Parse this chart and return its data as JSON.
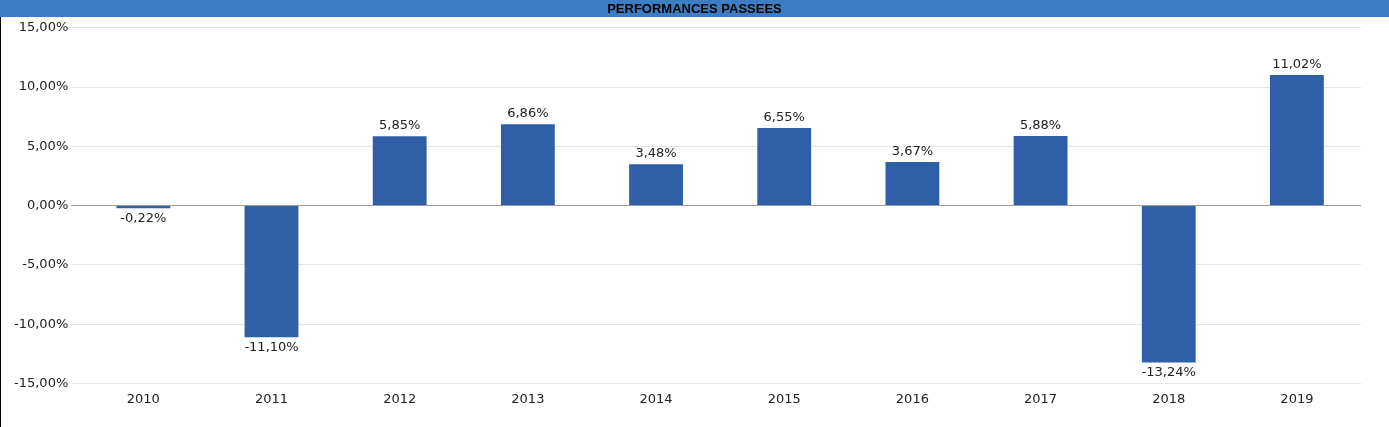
{
  "chart_data": {
    "type": "bar",
    "title": "PERFORMANCES PASSEES",
    "categories": [
      "2010",
      "2011",
      "2012",
      "2013",
      "2014",
      "2015",
      "2016",
      "2017",
      "2018",
      "2019"
    ],
    "series": [
      {
        "color": "#2f5fa7",
        "values": [
          -0.22,
          -11.1,
          5.85,
          6.86,
          3.48,
          6.55,
          3.67,
          5.88,
          -13.24,
          11.02
        ],
        "value_labels": [
          "-0,22%",
          "-11,10%",
          "5,85%",
          "6,86%",
          "3,48%",
          "6,55%",
          "3,67%",
          "5,88%",
          "-13,24%",
          "11,02%"
        ]
      }
    ],
    "ylim": [
      -15,
      15
    ],
    "yticks": [
      {
        "value": -15,
        "label": "-15,00%"
      },
      {
        "value": -10,
        "label": "-10,00%"
      },
      {
        "value": -5,
        "label": "-5,00%"
      },
      {
        "value": 0,
        "label": "0,00%"
      },
      {
        "value": 5,
        "label": "5,00%"
      },
      {
        "value": 10,
        "label": "10,00%"
      },
      {
        "value": 15,
        "label": "15,00%"
      }
    ],
    "grid": "y",
    "legend": false
  }
}
